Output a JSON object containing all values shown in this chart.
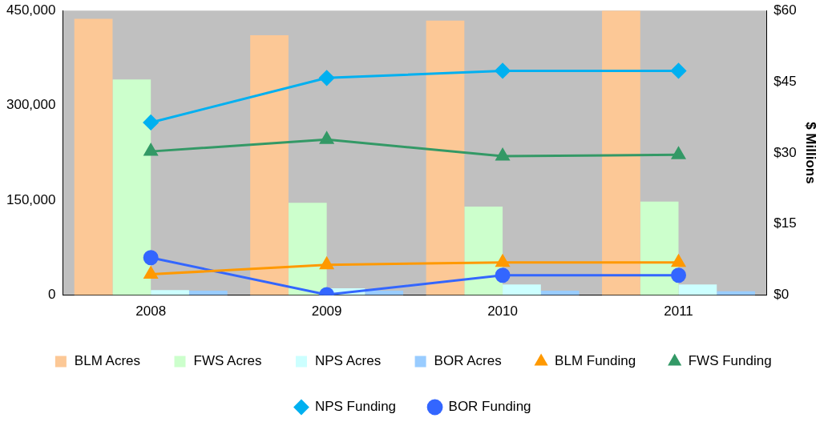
{
  "chart_data": {
    "type": "bar",
    "categories": [
      "2008",
      "2009",
      "2010",
      "2011"
    ],
    "y2label": "$ Millions",
    "ylim": [
      0,
      450000
    ],
    "yticks": [
      {
        "value": 0,
        "label": "0"
      },
      {
        "value": 150000,
        "label": "150,000"
      },
      {
        "value": 300000,
        "label": "300,000"
      },
      {
        "value": 450000,
        "label": "450,000"
      }
    ],
    "y2lim": [
      0,
      60
    ],
    "y2ticks": [
      {
        "value": 0,
        "label": "$0"
      },
      {
        "value": 15,
        "label": "$15"
      },
      {
        "value": 30,
        "label": "$30"
      },
      {
        "value": 45,
        "label": "$45"
      },
      {
        "value": 60,
        "label": "$60"
      }
    ],
    "grid": false,
    "legend": "bottom",
    "series": [
      {
        "name": "BLM Acres",
        "color": "#fcc896",
        "values": [
          437000,
          411000,
          434000,
          450000
        ]
      },
      {
        "name": "FWS Acres",
        "type": "bar",
        "color": "#ccffcc",
        "values": [
          341000,
          146000,
          140000,
          148000
        ]
      },
      {
        "name": "NPS Acres",
        "type": "bar",
        "color": "#ccffff",
        "values": [
          8000,
          11000,
          17000,
          17000
        ]
      },
      {
        "name": "BOR Acres",
        "type": "bar",
        "color": "#99ccff",
        "values": [
          7000,
          7000,
          7000,
          6000
        ]
      },
      {
        "name": "BLM Funding",
        "type": "line",
        "axis": "y2",
        "marker": "triangle",
        "color": "#ff9900",
        "values": [
          4.4,
          6.4,
          6.9,
          6.9
        ]
      },
      {
        "name": "FWS Funding",
        "type": "line",
        "axis": "y2",
        "marker": "triangle",
        "color": "#339966",
        "values": [
          30.3,
          32.8,
          29.3,
          29.6
        ]
      },
      {
        "name": "NPS Funding",
        "type": "line",
        "axis": "y2",
        "marker": "diamond",
        "color": "#00b0f0",
        "values": [
          36.4,
          45.8,
          47.3,
          47.3
        ]
      },
      {
        "name": "BOR Funding",
        "type": "line",
        "axis": "y2",
        "marker": "circle",
        "color": "#3366ff",
        "values": [
          7.9,
          0.1,
          4.2,
          4.2
        ]
      }
    ]
  }
}
